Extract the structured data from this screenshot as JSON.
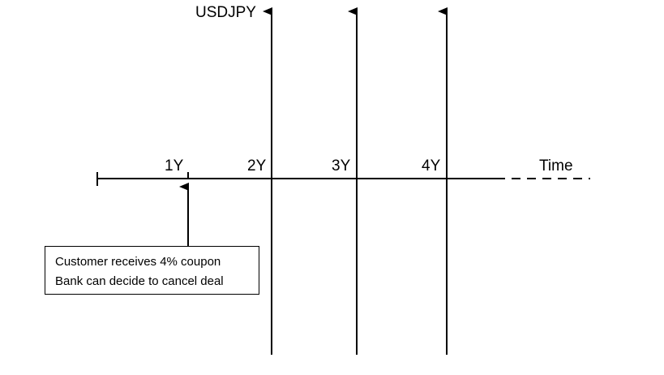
{
  "y_axis_label": "USDJPY",
  "time_label": "Time",
  "ticks": [
    "1Y",
    "2Y",
    "3Y",
    "4Y"
  ],
  "callout": {
    "line1": "Customer receives 4% coupon",
    "line2": "Bank can decide to cancel deal"
  }
}
